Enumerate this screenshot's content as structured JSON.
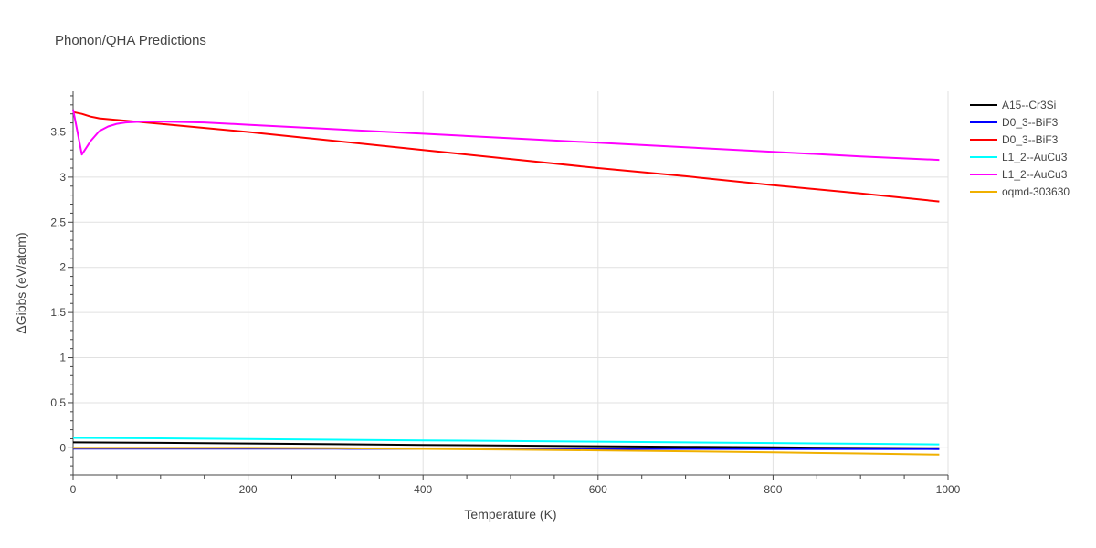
{
  "chart_data": {
    "type": "line",
    "title": "Phonon/QHA Predictions",
    "xlabel": "Temperature (K)",
    "ylabel": "ΔGibbs (eV/atom)",
    "xlim": [
      0,
      1000
    ],
    "ylim": [
      -0.3,
      3.95
    ],
    "xticks": [
      0,
      200,
      400,
      600,
      800,
      1000
    ],
    "xtick_labels": [
      "0",
      "200",
      "400",
      "600",
      "800",
      "1000"
    ],
    "yticks": [
      0,
      0.5,
      1,
      1.5,
      2,
      2.5,
      3,
      3.5
    ],
    "ytick_labels": [
      "0",
      "0.5",
      "1",
      "1.5",
      "2",
      "2.5",
      "3",
      "3.5"
    ],
    "grid": true,
    "legend_position": "right",
    "series": [
      {
        "name": "A15--Cr3Si",
        "color": "#000000",
        "x": [
          0,
          100,
          200,
          300,
          400,
          500,
          600,
          700,
          800,
          900,
          990
        ],
        "y": [
          0.06,
          0.055,
          0.048,
          0.04,
          0.032,
          0.025,
          0.018,
          0.012,
          0.006,
          0.0,
          -0.005
        ]
      },
      {
        "name": "D0_3--BiF3",
        "color": "#0000ff",
        "x": [
          0,
          100,
          200,
          300,
          400,
          500,
          600,
          700,
          800,
          900,
          990
        ],
        "y": [
          -0.01,
          -0.01,
          -0.01,
          -0.01,
          -0.011,
          -0.011,
          -0.012,
          -0.012,
          -0.013,
          -0.013,
          -0.014
        ]
      },
      {
        "name": "D0_3--BiF3",
        "color": "#ff0000",
        "x": [
          0,
          10,
          20,
          30,
          100,
          200,
          300,
          400,
          500,
          600,
          700,
          800,
          900,
          990
        ],
        "y": [
          3.72,
          3.7,
          3.67,
          3.65,
          3.59,
          3.5,
          3.4,
          3.3,
          3.2,
          3.1,
          3.01,
          2.91,
          2.82,
          2.73
        ]
      },
      {
        "name": "L1_2--AuCu3",
        "color": "#00ffff",
        "x": [
          0,
          100,
          200,
          300,
          400,
          500,
          600,
          700,
          800,
          900,
          990
        ],
        "y": [
          0.11,
          0.105,
          0.098,
          0.09,
          0.082,
          0.075,
          0.068,
          0.06,
          0.053,
          0.045,
          0.038
        ]
      },
      {
        "name": "L1_2--AuCu3",
        "color": "#ff00ff",
        "x": [
          0,
          10,
          20,
          30,
          40,
          50,
          60,
          80,
          100,
          150,
          200,
          300,
          400,
          500,
          600,
          700,
          800,
          900,
          990
        ],
        "y": [
          3.75,
          3.25,
          3.4,
          3.51,
          3.56,
          3.59,
          3.605,
          3.615,
          3.615,
          3.605,
          3.58,
          3.53,
          3.48,
          3.43,
          3.38,
          3.33,
          3.28,
          3.23,
          3.19
        ]
      },
      {
        "name": "oqmd-303630",
        "color": "#f0b000",
        "x": [
          0,
          100,
          200,
          300,
          400,
          500,
          600,
          700,
          800,
          900,
          990
        ],
        "y": [
          0.0,
          0.0,
          0.0,
          -0.005,
          -0.012,
          -0.02,
          -0.028,
          -0.038,
          -0.05,
          -0.062,
          -0.075
        ]
      }
    ]
  }
}
